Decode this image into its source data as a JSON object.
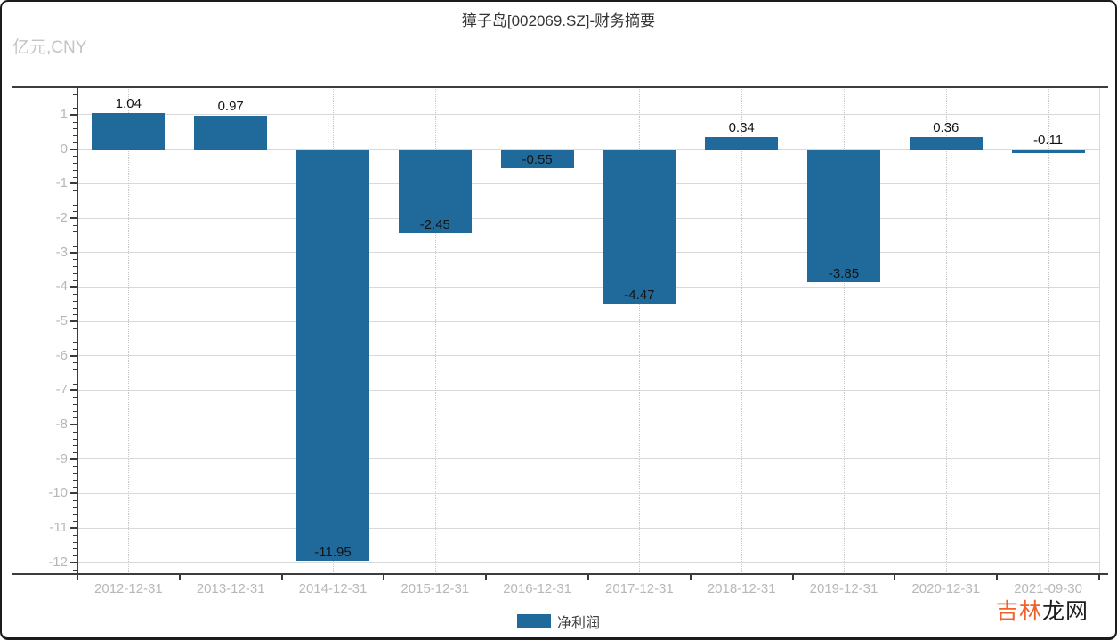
{
  "header": {
    "title": "獐子岛[002069.SZ]-财务摘要",
    "unit_label": "亿元,CNY"
  },
  "chart_data": {
    "type": "bar",
    "title": "獐子岛[002069.SZ]-财务摘要",
    "ylabel": "亿元,CNY",
    "categories": [
      "2012-12-31",
      "2013-12-31",
      "2014-12-31",
      "2015-12-31",
      "2016-12-31",
      "2017-12-31",
      "2018-12-31",
      "2019-12-31",
      "2020-12-31",
      "2021-09-30"
    ],
    "series": [
      {
        "name": "净利润",
        "color": "#1f6a9a",
        "values": [
          1.04,
          0.97,
          -11.95,
          -2.45,
          -0.55,
          -4.47,
          0.34,
          -3.85,
          0.36,
          -0.11
        ]
      }
    ],
    "ylim": [
      -12.34,
      1.8
    ],
    "yticks": [
      1,
      0,
      -1,
      -2,
      -3,
      -4,
      -5,
      -6,
      -7,
      -8,
      -9,
      -10,
      -11,
      -12
    ],
    "grid": {
      "horizontal": "solid",
      "vertical": "dotted"
    },
    "legend_position": "bottom",
    "value_labels_shown": true
  },
  "legend": {
    "items": [
      {
        "label": "净利润",
        "color": "#1f6a9a"
      }
    ]
  },
  "watermark": {
    "part1": "吉林",
    "part2": "龙网",
    "part1_color": "#f0612c",
    "part2_color": "#1c1c1c"
  }
}
